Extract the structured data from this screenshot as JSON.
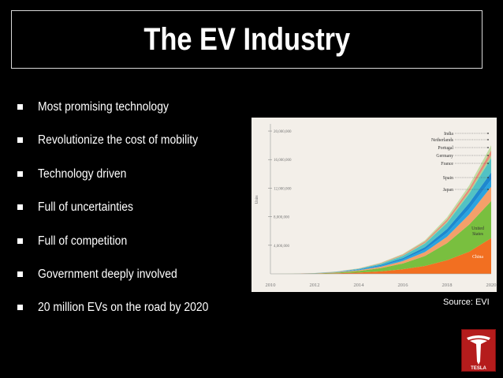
{
  "slide": {
    "title": "The EV Industry",
    "bullets": [
      "Most promising technology",
      "Revolutionize the cost of mobility",
      "Technology driven",
      "Full of uncertainties",
      "Full of competition",
      "Government deeply involved",
      "20 million EVs on the road by 2020"
    ],
    "source": "Source: EVI",
    "logo_text": "TESLA",
    "logo_icon": "tesla-t-icon"
  },
  "chart_data": {
    "type": "area",
    "stacked": true,
    "ylabel": "Units",
    "xlabel": "",
    "title": "",
    "x": [
      2010,
      2011,
      2012,
      2013,
      2014,
      2015,
      2016,
      2017,
      2018,
      2019,
      2020
    ],
    "xticks": [
      "2010",
      "2012",
      "2014",
      "2016",
      "2018",
      "2020"
    ],
    "yticks": [
      "4,000,000",
      "8,000,000",
      "12,000,000",
      "16,000,000",
      "20,000,000"
    ],
    "ytick_values": [
      4000000,
      8000000,
      12000000,
      16000000,
      20000000
    ],
    "ylim": [
      0,
      21000000
    ],
    "xlim": [
      2010,
      2020
    ],
    "grid": false,
    "series": [
      {
        "name": "China",
        "color": "#f26f21",
        "values": [
          0,
          5000,
          30000,
          80000,
          180000,
          350000,
          650000,
          1100000,
          1900000,
          3100000,
          5000000
        ]
      },
      {
        "name": "United States",
        "color": "#79bf3f",
        "values": [
          0,
          5000,
          30000,
          90000,
          220000,
          450000,
          800000,
          1400000,
          2400000,
          3800000,
          5200000
        ]
      },
      {
        "name": "Japan",
        "color": "#f4a06a",
        "values": [
          0,
          3000,
          15000,
          45000,
          100000,
          200000,
          340000,
          560000,
          900000,
          1400000,
          2000000
        ]
      },
      {
        "name": "Spain",
        "color": "#29a4e0",
        "values": [
          0,
          1000,
          8000,
          25000,
          60000,
          120000,
          210000,
          340000,
          540000,
          800000,
          1000000
        ]
      },
      {
        "name": "France",
        "color": "#1e88cf",
        "values": [
          0,
          1000,
          8000,
          25000,
          60000,
          120000,
          210000,
          340000,
          540000,
          800000,
          1000000
        ]
      },
      {
        "name": "Germany",
        "color": "#52c2c4",
        "values": [
          0,
          1000,
          10000,
          30000,
          80000,
          170000,
          300000,
          500000,
          850000,
          1300000,
          2000000
        ]
      },
      {
        "name": "Portugal",
        "color": "#a9d596",
        "values": [
          0,
          500,
          3000,
          8000,
          20000,
          40000,
          70000,
          110000,
          180000,
          270000,
          400000
        ]
      },
      {
        "name": "Netherlands",
        "color": "#e88b78",
        "values": [
          0,
          500,
          4000,
          12000,
          30000,
          60000,
          110000,
          180000,
          300000,
          450000,
          700000
        ]
      },
      {
        "name": "India",
        "color": "#c4dca3",
        "values": [
          0,
          500,
          3000,
          10000,
          25000,
          55000,
          100000,
          170000,
          290000,
          450000,
          700000
        ]
      }
    ]
  },
  "colors": {
    "background": "#000000",
    "chart_background": "#f3efe9",
    "logo_red": "#b51c1c"
  }
}
